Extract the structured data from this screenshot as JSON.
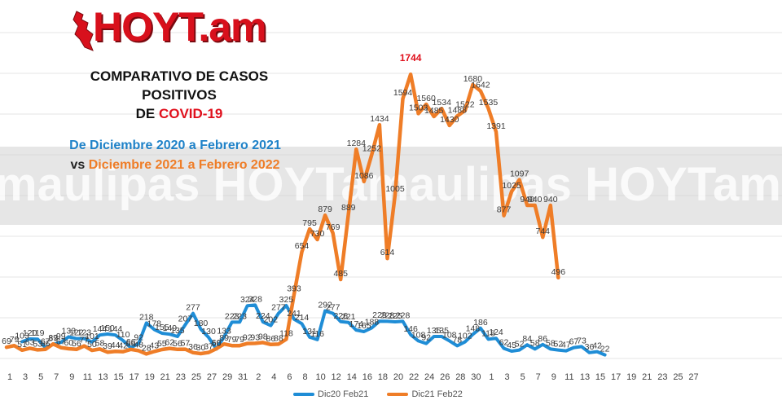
{
  "brand": {
    "logo_text": "HOYT.am"
  },
  "title": {
    "line1": "COMPARATIVO DE CASOS",
    "line2": "POSITIVOS",
    "line3_prefix": "DE ",
    "line3_highlight": "COVID-19"
  },
  "subtitle": {
    "line1": "De Diciembre 2020 a Febrero 2021",
    "line2_prefix": "vs ",
    "line2_highlight": "Diciembre 2021 a Febrero 2022"
  },
  "watermark": {
    "text": "maulipas HOYTamaulipas HOYTama"
  },
  "colors": {
    "series_2020": "#1f8dd6",
    "series_2021": "#ef7d27",
    "peak_label": "#e0101c",
    "grid": "#e4e4e4",
    "band": "#d2d2d2",
    "watermark": "#ffffff"
  },
  "chart_data": {
    "type": "line",
    "title": "",
    "xlabel": "",
    "ylabel": "",
    "ylim": [
      0,
      2000
    ],
    "grid": true,
    "legend_position": "bottom",
    "x_tick_labels": [
      "1",
      "3",
      "5",
      "7",
      "9",
      "11",
      "13",
      "15",
      "17",
      "19",
      "21",
      "23",
      "25",
      "27",
      "29",
      "31",
      "2",
      "4",
      "6",
      "8",
      "10",
      "12",
      "14",
      "16",
      "18",
      "20",
      "22",
      "24",
      "26",
      "28",
      "30",
      "1",
      "3",
      "5",
      "7",
      "9",
      "11",
      "13",
      "15",
      "17",
      "19",
      "21",
      "23",
      "25",
      "27"
    ],
    "series": [
      {
        "name": "Dic20 Feb21",
        "color": "#1f8dd6",
        "label_start": 2,
        "values": [
          103,
          120,
          119,
          67,
          87,
          99,
          133,
          122,
          123,
          101,
          144,
          150,
          144,
          110,
          66,
          92,
          218,
          178,
          155,
          149,
          135,
          207,
          277,
          180,
          130,
          58,
          133,
          223,
          223,
          324,
          328,
          224,
          202,
          277,
          325,
          241,
          214,
          131,
          116,
          292,
          277,
          226,
          221,
          174,
          165,
          188,
          229,
          228,
          225,
          228,
          146,
          108,
          92,
          135,
          135,
          108,
          78,
          102,
          148,
          186,
          118,
          124,
          62,
          45,
          52,
          84,
          58,
          86,
          58,
          52,
          47,
          67,
          73,
          36,
          42,
          22
        ]
      },
      {
        "name": "Dic21 Feb22",
        "color": "#ef7d27",
        "label_start": 0,
        "values": [
          69,
          79,
          51,
          63,
          53,
          56,
          89,
          67,
          60,
          56,
          77,
          50,
          58,
          39,
          44,
          42,
          56,
          48,
          28,
          43,
          55,
          62,
          56,
          57,
          36,
          30,
          37,
          60,
          89,
          79,
          79,
          92,
          93,
          98,
          86,
          88,
          118,
          393,
          654,
          795,
          730,
          879,
          769,
          485,
          889,
          1284,
          1086,
          1252,
          1434,
          614,
          1005,
          1594,
          1744,
          1503,
          1560,
          1485,
          1534,
          1430,
          1488,
          1522,
          1680,
          1642,
          1535,
          1391,
          877,
          1025,
          1097,
          940,
          940,
          744,
          940,
          496
        ]
      }
    ]
  }
}
